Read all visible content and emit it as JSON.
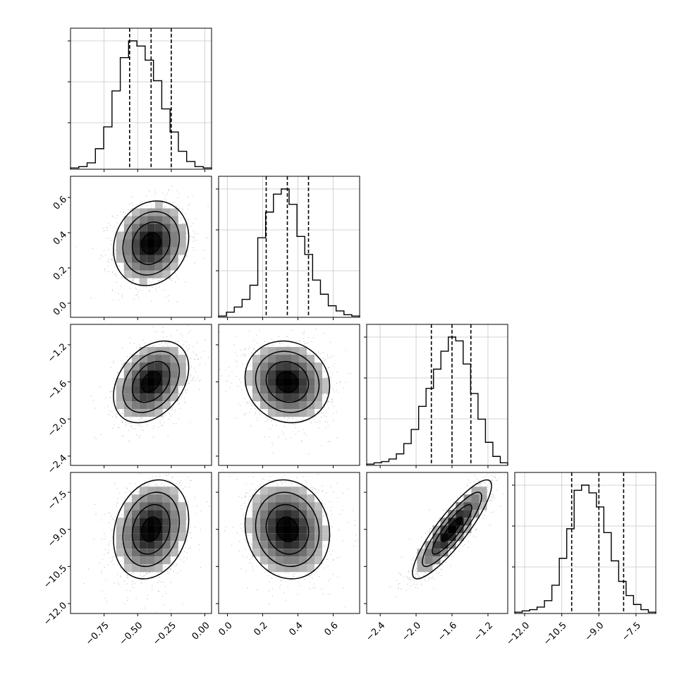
{
  "figure": {
    "type": "corner_plot",
    "dimensions": 4,
    "quantiles": [
      0.16,
      0.5,
      0.84
    ]
  },
  "chart_data": [
    {
      "type": "histogram",
      "variable_index": 0,
      "bin_edges_range": [
        -1.0,
        0.05
      ],
      "counts": [
        1,
        2,
        5,
        16,
        33,
        61,
        87,
        100,
        96,
        85,
        69,
        47,
        29,
        14,
        6,
        2,
        1
      ],
      "quantile_lines": [
        -0.56,
        -0.4,
        -0.25
      ],
      "xlim": [
        -1.0,
        0.05
      ]
    },
    {
      "type": "histogram",
      "variable_index": 1,
      "bin_edges_range": [
        -0.05,
        0.75
      ],
      "counts": [
        1,
        4,
        8,
        14,
        25,
        62,
        82,
        96,
        100,
        88,
        63,
        49,
        29,
        18,
        9,
        5,
        2,
        1
      ],
      "quantile_lines": [
        0.22,
        0.34,
        0.46
      ],
      "xlim": [
        -0.05,
        0.75
      ]
    },
    {
      "type": "histogram",
      "variable_index": 2,
      "bin_edges_range": [
        -2.55,
        -0.98
      ],
      "counts": [
        1,
        2,
        3,
        5,
        9,
        17,
        28,
        46,
        60,
        75,
        89,
        100,
        97,
        79,
        56,
        36,
        18,
        7,
        2
      ],
      "quantile_lines": [
        -1.83,
        -1.6,
        -1.39
      ],
      "xlim": [
        -2.55,
        -0.98
      ]
    },
    {
      "type": "histogram",
      "variable_index": 3,
      "bin_edges_range": [
        -12.4,
        -6.7
      ],
      "counts": [
        1,
        2,
        3,
        5,
        10,
        22,
        43,
        66,
        96,
        100,
        94,
        83,
        63,
        41,
        25,
        14,
        7,
        3,
        1
      ],
      "quantile_lines": [
        -10.1,
        -9.0,
        -8.0
      ],
      "xlim": [
        -12.4,
        -6.7
      ]
    },
    {
      "type": "scatter_density",
      "x_index": 0,
      "y_index": 1,
      "mean": [
        -0.4,
        0.34
      ],
      "std": [
        0.14,
        0.12
      ],
      "correlation": 0.15,
      "xlim": [
        -1.0,
        0.05
      ],
      "ylim": [
        -0.08,
        0.72
      ]
    },
    {
      "type": "scatter_density",
      "x_index": 0,
      "y_index": 2,
      "mean": [
        -0.4,
        -1.6
      ],
      "std": [
        0.14,
        0.22
      ],
      "correlation": 0.35,
      "xlim": [
        -1.0,
        0.05
      ],
      "ylim": [
        -2.5,
        -0.98
      ]
    },
    {
      "type": "scatter_density",
      "x_index": 0,
      "y_index": 3,
      "mean": [
        -0.4,
        -9.0
      ],
      "std": [
        0.14,
        1.0
      ],
      "correlation": 0.2,
      "xlim": [
        -1.0,
        0.05
      ],
      "ylim": [
        -12.4,
        -6.7
      ]
    },
    {
      "type": "scatter_density",
      "x_index": 1,
      "y_index": 2,
      "mean": [
        0.34,
        -1.6
      ],
      "std": [
        0.12,
        0.22
      ],
      "correlation": -0.1,
      "xlim": [
        -0.05,
        0.75
      ],
      "ylim": [
        -2.5,
        -0.98
      ]
    },
    {
      "type": "scatter_density",
      "x_index": 1,
      "y_index": 3,
      "mean": [
        0.34,
        -9.0
      ],
      "std": [
        0.12,
        1.0
      ],
      "correlation": -0.1,
      "xlim": [
        -0.05,
        0.75
      ],
      "ylim": [
        -12.4,
        -6.7
      ]
    },
    {
      "type": "scatter_density",
      "x_index": 2,
      "y_index": 3,
      "mean": [
        -1.6,
        -9.0
      ],
      "std": [
        0.22,
        1.0
      ],
      "correlation": 0.88,
      "xlim": [
        -2.55,
        -0.98
      ],
      "ylim": [
        -12.4,
        -6.7
      ]
    }
  ],
  "axes": {
    "x_ticks": [
      [
        "−0.75",
        "−0.50",
        "−0.25",
        "0.00"
      ],
      [
        "0.0",
        "0.2",
        "0.4",
        "0.6"
      ],
      [
        "−2.4",
        "−2.0",
        "−1.6",
        "−1.2"
      ],
      [
        "−12.0",
        "−10.5",
        "−9.0",
        "−7.5"
      ]
    ],
    "x_tick_values": [
      [
        -0.75,
        -0.5,
        -0.25,
        0.0
      ],
      [
        0.0,
        0.2,
        0.4,
        0.6
      ],
      [
        -2.4,
        -2.0,
        -1.6,
        -1.2
      ],
      [
        -12.0,
        -10.5,
        -9.0,
        -7.5
      ]
    ],
    "y_ticks": [
      [],
      [
        "0.0",
        "0.2",
        "0.4",
        "0.6"
      ],
      [
        "−2.4",
        "−2.0",
        "−1.6",
        "−1.2"
      ],
      [
        "−12.0",
        "−10.5",
        "−9.0",
        "−7.5"
      ]
    ],
    "y_tick_values": [
      [],
      [
        0.0,
        0.2,
        0.4,
        0.6
      ],
      [
        -2.4,
        -2.0,
        -1.6,
        -1.2
      ],
      [
        -12.0,
        -10.5,
        -9.0,
        -7.5
      ]
    ]
  },
  "colors": {
    "line": "#000000",
    "points": "#8a8a8a",
    "grid": "#c8c8c8"
  }
}
